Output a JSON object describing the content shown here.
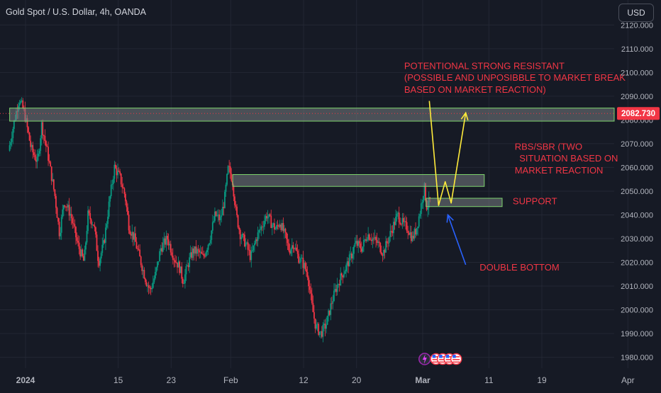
{
  "header": {
    "title": "Gold Spot / U.S. Dollar, 4h, OANDA",
    "currency_button": "USD"
  },
  "price_badge": "2082.730",
  "chart_data": {
    "type": "candlestick",
    "symbol": "XAUUSD",
    "timeframe": "4h",
    "y_ticks": [
      "2120.000",
      "2110.000",
      "2100.000",
      "2090.000",
      "2080.000",
      "2070.000",
      "2060.000",
      "2050.000",
      "2040.000",
      "2030.000",
      "2020.000",
      "2010.000",
      "2000.000",
      "1990.000",
      "1980.000"
    ],
    "ylim": [
      1974,
      2124
    ],
    "x_ticks": [
      {
        "label": "2024",
        "t": 0.0,
        "bold": true
      },
      {
        "label": "15",
        "t": 14.0
      },
      {
        "label": "23",
        "t": 22.0
      },
      {
        "label": "Feb",
        "t": 31.0
      },
      {
        "label": "12",
        "t": 42.0
      },
      {
        "label": "20",
        "t": 50.0
      },
      {
        "label": "Mar",
        "t": 60.0,
        "bold": true
      },
      {
        "label": "11",
        "t": 70.0
      },
      {
        "label": "19",
        "t": 78.0
      },
      {
        "label": "Apr",
        "t": 91.0
      }
    ],
    "xlim": [
      -2.5,
      94
    ],
    "last_price": 2082.73,
    "path_keypoints": [
      [
        -2.4,
        2067
      ],
      [
        -1.5,
        2080
      ],
      [
        -0.8,
        2089
      ],
      [
        0.0,
        2083
      ],
      [
        1.0,
        2068
      ],
      [
        2.0,
        2062
      ],
      [
        2.6,
        2078
      ],
      [
        3.5,
        2066
      ],
      [
        4.6,
        2048
      ],
      [
        5.3,
        2032
      ],
      [
        6.0,
        2046
      ],
      [
        7.0,
        2040
      ],
      [
        8.0,
        2028
      ],
      [
        9.0,
        2020
      ],
      [
        9.6,
        2040
      ],
      [
        10.5,
        2036
      ],
      [
        11.2,
        2020
      ],
      [
        12.0,
        2028
      ],
      [
        12.8,
        2045
      ],
      [
        13.6,
        2060
      ],
      [
        14.4,
        2056
      ],
      [
        15.2,
        2048
      ],
      [
        15.8,
        2035
      ],
      [
        16.6,
        2030
      ],
      [
        17.6,
        2020
      ],
      [
        18.4,
        2012
      ],
      [
        19.0,
        2008
      ],
      [
        19.8,
        2015
      ],
      [
        20.6,
        2026
      ],
      [
        21.6,
        2030
      ],
      [
        22.6,
        2022
      ],
      [
        23.4,
        2018
      ],
      [
        24.0,
        2012
      ],
      [
        24.8,
        2020
      ],
      [
        25.5,
        2025
      ],
      [
        26.4,
        2024
      ],
      [
        27.0,
        2022
      ],
      [
        28.0,
        2030
      ],
      [
        28.8,
        2040
      ],
      [
        29.6,
        2038
      ],
      [
        30.2,
        2046
      ],
      [
        30.8,
        2060
      ],
      [
        31.4,
        2055
      ],
      [
        32.0,
        2040
      ],
      [
        32.6,
        2032
      ],
      [
        33.4,
        2028
      ],
      [
        34.2,
        2022
      ],
      [
        35.0,
        2030
      ],
      [
        35.8,
        2035
      ],
      [
        36.6,
        2040
      ],
      [
        37.4,
        2036
      ],
      [
        38.0,
        2034
      ],
      [
        38.6,
        2037
      ],
      [
        39.4,
        2031
      ],
      [
        40.0,
        2025
      ],
      [
        40.6,
        2028
      ],
      [
        41.4,
        2022
      ],
      [
        42.0,
        2020
      ],
      [
        42.8,
        2015
      ],
      [
        43.4,
        2002
      ],
      [
        44.0,
        1993
      ],
      [
        44.8,
        1990
      ],
      [
        45.6,
        1994
      ],
      [
        46.4,
        2003
      ],
      [
        47.2,
        2010
      ],
      [
        48.0,
        2015
      ],
      [
        48.6,
        2018
      ],
      [
        49.4,
        2023
      ],
      [
        50.0,
        2028
      ],
      [
        51.0,
        2026
      ],
      [
        51.8,
        2032
      ],
      [
        52.6,
        2030
      ],
      [
        53.4,
        2028
      ],
      [
        54.2,
        2024
      ],
      [
        55.0,
        2030
      ],
      [
        55.8,
        2036
      ],
      [
        56.4,
        2040
      ],
      [
        57.2,
        2036
      ],
      [
        58.0,
        2034
      ],
      [
        58.6,
        2030
      ],
      [
        59.2,
        2034
      ],
      [
        59.8,
        2042
      ],
      [
        60.4,
        2052
      ],
      [
        60.8,
        2043
      ],
      [
        61.2,
        2046
      ]
    ],
    "zones": [
      {
        "name": "resistance-zone",
        "x1": -2.4,
        "x2": 94,
        "y1": 2079.5,
        "y2": 2085
      },
      {
        "name": "rbs-sbr-zone",
        "x1": 31.3,
        "x2": 69.3,
        "y1": 2052,
        "y2": 2057
      },
      {
        "name": "support-zone",
        "x1": 60.5,
        "x2": 72.0,
        "y1": 2043.5,
        "y2": 2047
      }
    ],
    "arrows": [
      {
        "name": "yellow-path-arrow",
        "color": "#ffeb3b",
        "points": [
          [
            61.0,
            2088
          ],
          [
            62.4,
            2044
          ],
          [
            63.4,
            2054
          ],
          [
            64.3,
            2045
          ],
          [
            66.5,
            2083
          ]
        ]
      },
      {
        "name": "double-bottom-arrow",
        "color": "#2962ff",
        "points": [
          [
            66.5,
            2019
          ],
          [
            63.8,
            2040
          ]
        ]
      }
    ],
    "annotations": [
      {
        "name": "resistance-label-line-1",
        "text": "POTENTIONAL STRONG RESISTANT",
        "t": 57.2,
        "y": 2101.5
      },
      {
        "name": "resistance-label-line-2",
        "text": "(POSSIBLE AND UNPOSIBBLE TO MARKET BREAK",
        "t": 57.2,
        "y": 2096.5
      },
      {
        "name": "resistance-label-line-3",
        "text": "BASED ON MARKET REACTION)",
        "t": 57.2,
        "y": 2091.5
      },
      {
        "name": "rbs-label-line-1",
        "text": "RBS/SBR (TWO",
        "t": 73.9,
        "y": 2067.5
      },
      {
        "name": "rbs-label-line-2",
        "text": "SITUATION BASED ON",
        "t": 74.6,
        "y": 2062.5
      },
      {
        "name": "rbs-label-line-3",
        "text": "MARKET REACTION",
        "t": 73.9,
        "y": 2057.5
      },
      {
        "name": "support-label",
        "text": "SUPPORT",
        "t": 73.6,
        "y": 2044.5
      },
      {
        "name": "double-bottom-label",
        "text": "DOUBLE BOTTOM",
        "t": 68.6,
        "y": 2016.5
      }
    ],
    "colors": {
      "background": "#161a25",
      "grid": "#232734",
      "up": "#089981",
      "down": "#f23645",
      "annotation_text": "#f23645",
      "zone_fill": "rgba(120,126,130,0.55)",
      "zone_border": "#7dd36d",
      "axis_text": "#b2b5be",
      "badge_bg": "#f23645"
    }
  }
}
